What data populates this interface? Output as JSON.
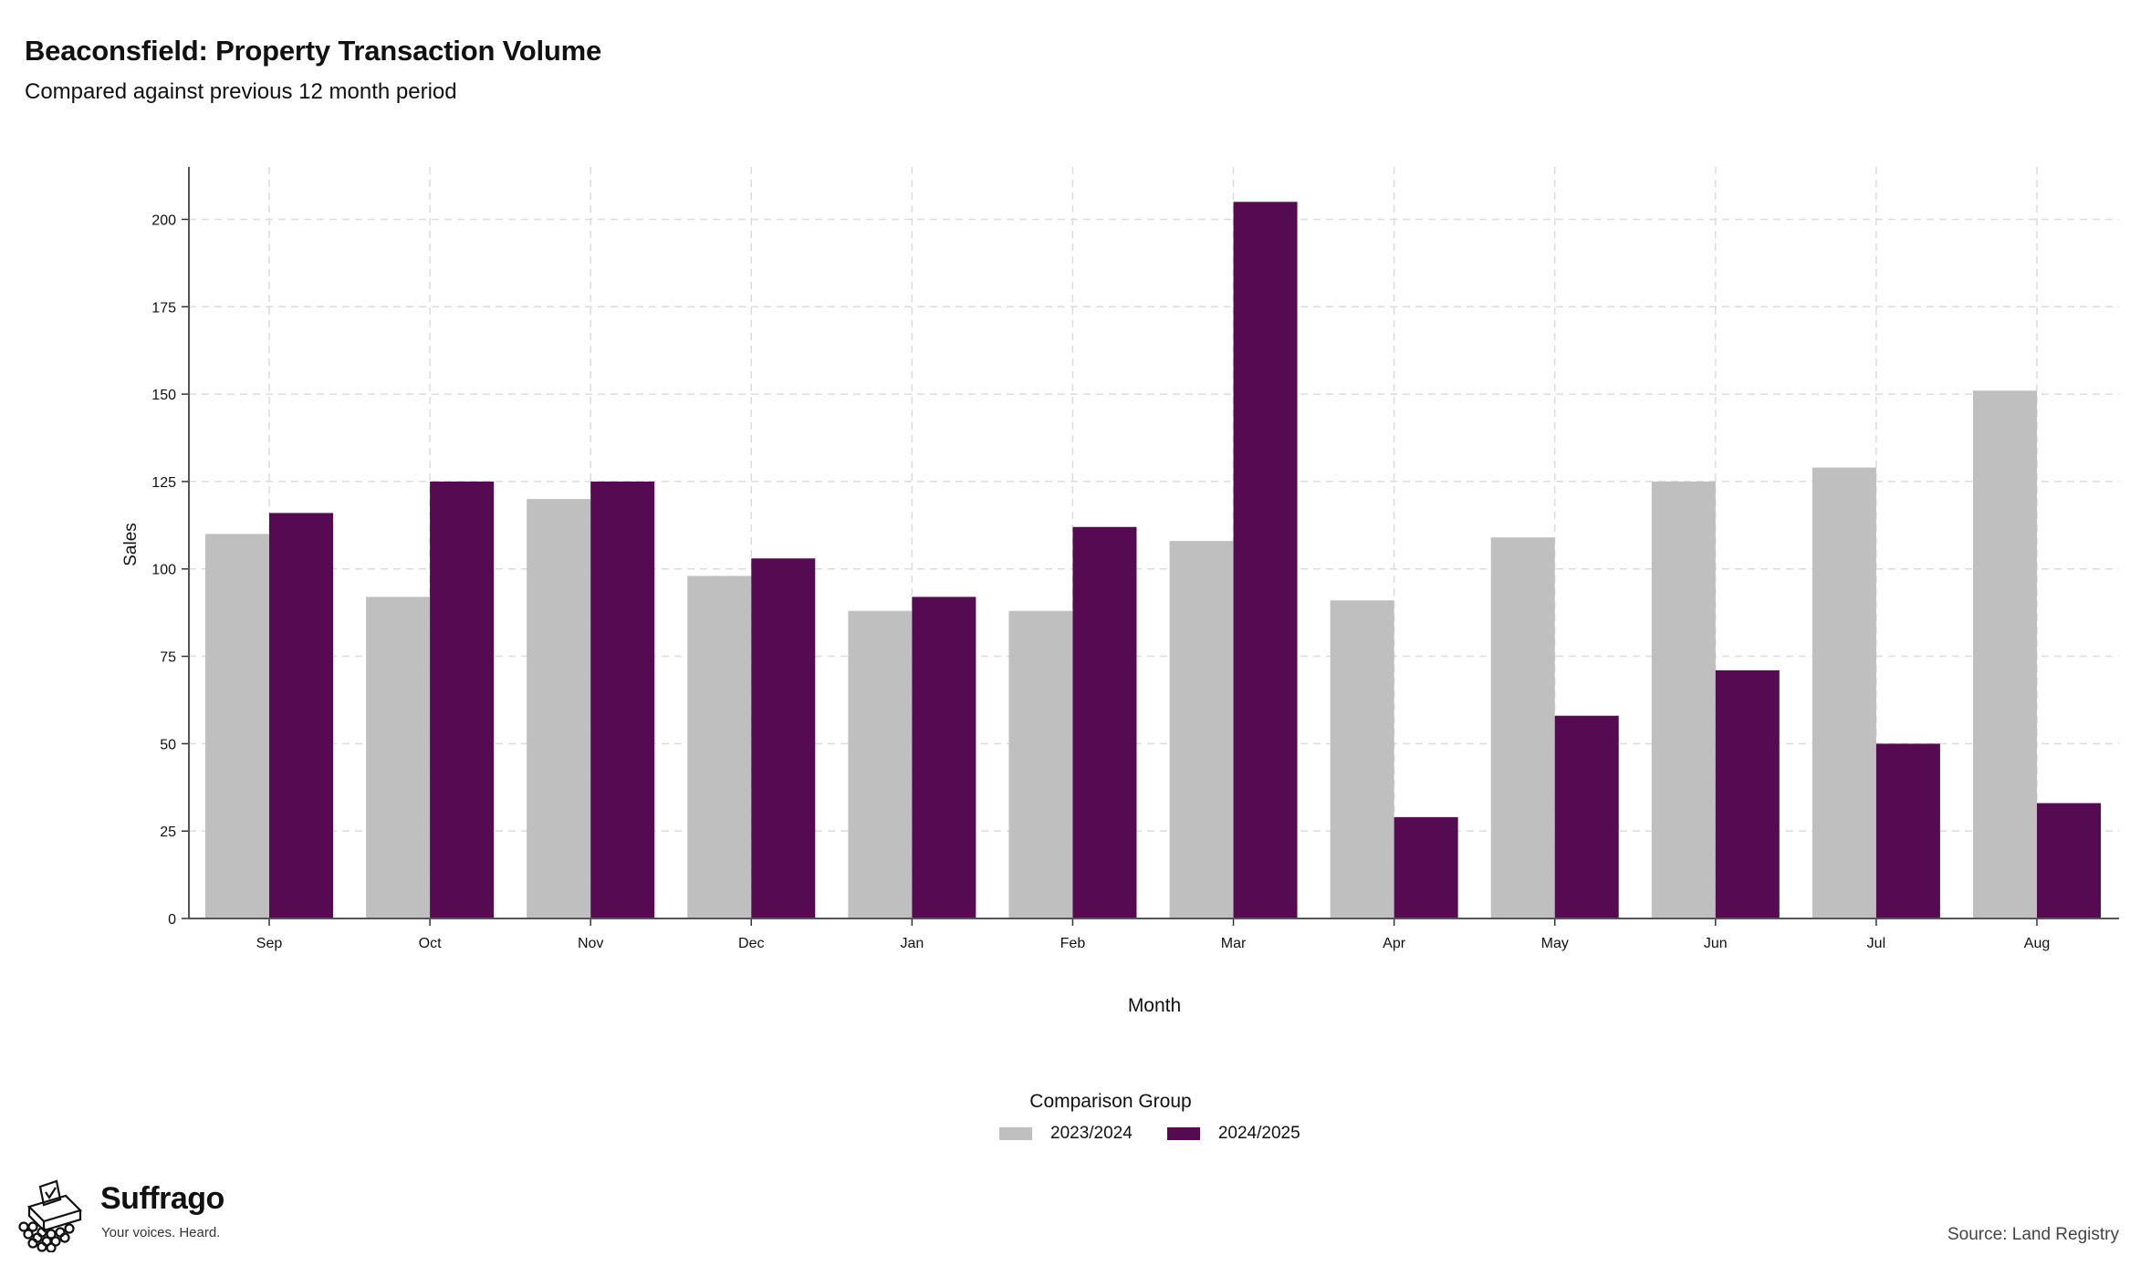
{
  "header": {
    "title": "Beaconsfield: Property Transaction Volume",
    "subtitle": "Compared against previous 12 month period"
  },
  "chart_data": {
    "type": "bar",
    "categories": [
      "Sep",
      "Oct",
      "Nov",
      "Dec",
      "Jan",
      "Feb",
      "Mar",
      "Apr",
      "May",
      "Jun",
      "Jul",
      "Aug"
    ],
    "series": [
      {
        "name": "2023/2024",
        "color": "#bfbfbf",
        "values": [
          110,
          92,
          120,
          98,
          88,
          88,
          108,
          91,
          109,
          125,
          129,
          151
        ]
      },
      {
        "name": "2024/2025",
        "color": "#550a52",
        "values": [
          116,
          125,
          125,
          103,
          92,
          112,
          205,
          29,
          58,
          71,
          50,
          33
        ]
      }
    ],
    "xlabel": "Month",
    "ylabel": "Sales",
    "ylim": [
      0,
      215
    ],
    "yticks": [
      0,
      25,
      50,
      75,
      100,
      125,
      150,
      175,
      200
    ],
    "grid": true,
    "legend_title": "Comparison Group",
    "legend_position": "bottom"
  },
  "footer": {
    "brand": "Suffrago",
    "tagline": "Your voices. Heard.",
    "source": "Source: Land Registry"
  }
}
